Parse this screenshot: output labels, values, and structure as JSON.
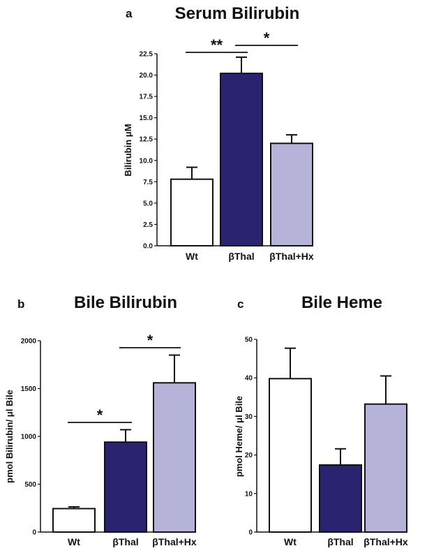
{
  "chart_data": [
    {
      "type": "bar",
      "panel": "a",
      "title": "Serum Bilirubin",
      "ylabel": "Bilirubin μM",
      "categories": [
        "Wt",
        "βThal",
        "βThal+Hx"
      ],
      "values": [
        7.8,
        20.2,
        12.0
      ],
      "errors": [
        1.4,
        1.9,
        1.0
      ],
      "colors": [
        "#ffffff",
        "#2a2470",
        "#b5b3d8"
      ],
      "ylim": [
        0,
        22.5
      ],
      "yticks": [
        "0.0",
        "2.5",
        "5.0",
        "7.5",
        "10.0",
        "12.5",
        "15.0",
        "17.5",
        "20.0",
        "22.5"
      ],
      "significance": [
        {
          "from": 0,
          "to": 1,
          "label": "**"
        },
        {
          "from": 1,
          "to": 2,
          "label": "*"
        }
      ]
    },
    {
      "type": "bar",
      "panel": "b",
      "title": "Bile Bilirubin",
      "ylabel": "pmol Bilirubin/ μl Bile",
      "categories": [
        "Wt",
        "βThal",
        "βThal+Hx"
      ],
      "values": [
        245,
        940,
        1560
      ],
      "errors": [
        18,
        130,
        290
      ],
      "colors": [
        "#ffffff",
        "#2a2470",
        "#b5b3d8"
      ],
      "ylim": [
        0,
        2000
      ],
      "yticks": [
        "0",
        "500",
        "1000",
        "1500",
        "2000"
      ],
      "significance": [
        {
          "from": 0,
          "to": 1,
          "label": "*"
        },
        {
          "from": 1,
          "to": 2,
          "label": "*"
        }
      ]
    },
    {
      "type": "bar",
      "panel": "c",
      "title": "Bile Heme",
      "ylabel": "pmol Heme/ μl Bile",
      "categories": [
        "Wt",
        "βThal",
        "βThal+Hx"
      ],
      "values": [
        39.8,
        17.4,
        33.2
      ],
      "errors": [
        7.9,
        4.2,
        7.3
      ],
      "colors": [
        "#ffffff",
        "#2a2470",
        "#b5b3d8"
      ],
      "ylim": [
        0,
        50
      ],
      "yticks": [
        "0",
        "10",
        "20",
        "30",
        "40",
        "50"
      ],
      "significance": []
    }
  ]
}
